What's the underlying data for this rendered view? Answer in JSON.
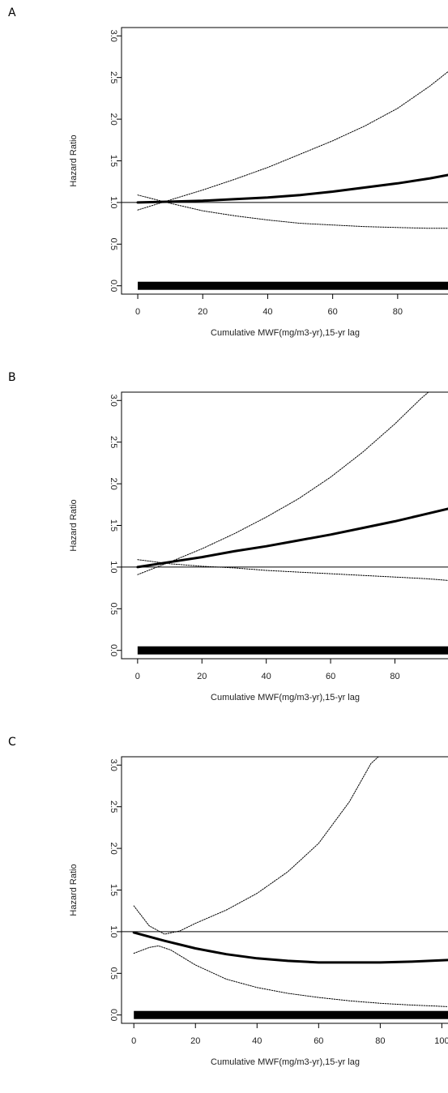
{
  "charts": [
    {
      "panel_label": "A",
      "chart_data": {
        "type": "line",
        "xlabel": "Cumulative MWF(mg/m3-yr),15-yr lag",
        "ylabel": "Hazard Ratio",
        "xlim": [
          -5,
          95.5
        ],
        "ylim": [
          -0.1,
          3.1
        ],
        "x_ticks": [
          "0",
          "20",
          "40",
          "60",
          "80"
        ],
        "y_ticks": [
          "0.0",
          "0.5",
          "1.0",
          "1.5",
          "2.0",
          "2.5",
          "3.0"
        ],
        "reference_line": 1.0,
        "rug": [
          0,
          95.5
        ],
        "series": [
          {
            "role": "estimate",
            "style": "thick-solid",
            "x": [
              0,
              10,
              20,
              30,
              40,
              50,
              60,
              70,
              80,
              90,
              95.5
            ],
            "y": [
              1.0,
              1.01,
              1.02,
              1.04,
              1.06,
              1.09,
              1.13,
              1.18,
              1.23,
              1.29,
              1.33
            ]
          },
          {
            "role": "upper-ci",
            "style": "dotted",
            "x": [
              0,
              10,
              20,
              30,
              40,
              50,
              60,
              70,
              80,
              90,
              95.5
            ],
            "y": [
              0.91,
              1.03,
              1.15,
              1.28,
              1.42,
              1.58,
              1.74,
              1.92,
              2.13,
              2.4,
              2.57
            ]
          },
          {
            "role": "lower-ci",
            "style": "dotted",
            "x": [
              0,
              10,
              20,
              30,
              40,
              50,
              60,
              70,
              80,
              90,
              95.5
            ],
            "y": [
              1.09,
              0.99,
              0.9,
              0.84,
              0.79,
              0.75,
              0.73,
              0.71,
              0.7,
              0.69,
              0.69
            ]
          }
        ]
      }
    },
    {
      "panel_label": "B",
      "chart_data": {
        "type": "line",
        "xlabel": "Cumulative MWF(mg/m3-yr),15-yr lag",
        "ylabel": "Hazard Ratio",
        "xlim": [
          -5,
          96.5
        ],
        "ylim": [
          -0.1,
          3.1
        ],
        "x_ticks": [
          "0",
          "20",
          "40",
          "60",
          "80"
        ],
        "y_ticks": [
          "0.0",
          "0.5",
          "1.0",
          "1.5",
          "2.0",
          "2.5",
          "3.0"
        ],
        "reference_line": 1.0,
        "rug": [
          0,
          96.5
        ],
        "series": [
          {
            "role": "estimate",
            "style": "thick-solid",
            "x": [
              0,
              10,
              20,
              30,
              40,
              50,
              60,
              70,
              80,
              90,
              96.5
            ],
            "y": [
              1.0,
              1.06,
              1.12,
              1.19,
              1.25,
              1.32,
              1.39,
              1.47,
              1.55,
              1.64,
              1.7
            ]
          },
          {
            "role": "upper-ci",
            "style": "dotted",
            "x": [
              0,
              10,
              20,
              30,
              40,
              50,
              60,
              70,
              80,
              88,
              91
            ],
            "y": [
              0.91,
              1.06,
              1.22,
              1.4,
              1.6,
              1.82,
              2.08,
              2.38,
              2.72,
              3.02,
              3.12
            ]
          },
          {
            "role": "lower-ci",
            "style": "dotted",
            "x": [
              0,
              10,
              20,
              30,
              40,
              50,
              60,
              70,
              80,
              90,
              96.5
            ],
            "y": [
              1.09,
              1.04,
              1.01,
              0.99,
              0.96,
              0.94,
              0.92,
              0.9,
              0.88,
              0.86,
              0.84
            ]
          }
        ]
      }
    },
    {
      "panel_label": "C",
      "chart_data": {
        "type": "line",
        "xlabel": "Cumulative MWF(mg/m3-yr),15-yr lag",
        "ylabel": "Hazard Ratio",
        "xlim": [
          -4,
          102
        ],
        "ylim": [
          -0.1,
          3.1
        ],
        "x_ticks": [
          "0",
          "20",
          "40",
          "60",
          "80",
          "100"
        ],
        "y_ticks": [
          "0.0",
          "0.5",
          "1.0",
          "1.5",
          "2.0",
          "2.5",
          "3.0"
        ],
        "reference_line": 1.0,
        "rug": [
          0,
          102
        ],
        "series": [
          {
            "role": "estimate",
            "style": "thick-solid",
            "x": [
              0,
              10,
              20,
              30,
              40,
              50,
              60,
              70,
              80,
              90,
              102
            ],
            "y": [
              0.99,
              0.89,
              0.8,
              0.73,
              0.68,
              0.65,
              0.63,
              0.63,
              0.63,
              0.64,
              0.66
            ]
          },
          {
            "role": "upper-ci",
            "style": "dotted",
            "x": [
              0,
              5,
              10,
              15,
              20,
              30,
              40,
              50,
              60,
              70,
              77,
              80
            ],
            "y": [
              1.31,
              1.07,
              0.97,
              1.01,
              1.1,
              1.26,
              1.46,
              1.72,
              2.06,
              2.56,
              3.02,
              3.12
            ]
          },
          {
            "role": "lower-ci",
            "style": "dotted",
            "x": [
              0,
              5,
              8,
              12,
              20,
              30,
              40,
              50,
              60,
              70,
              80,
              90,
              102
            ],
            "y": [
              0.74,
              0.81,
              0.83,
              0.78,
              0.6,
              0.43,
              0.33,
              0.26,
              0.21,
              0.17,
              0.14,
              0.12,
              0.1
            ]
          }
        ]
      }
    }
  ]
}
